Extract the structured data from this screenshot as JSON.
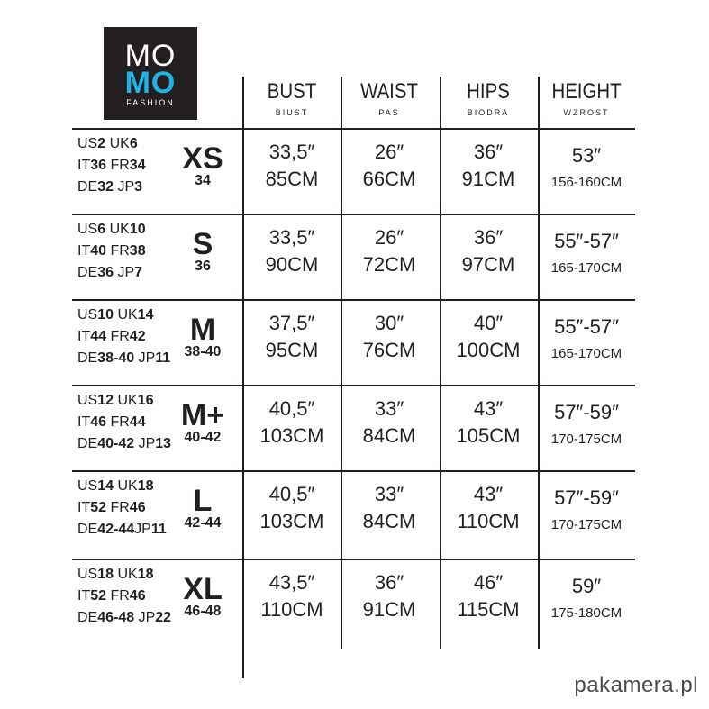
{
  "logo": {
    "line1": "MO",
    "line2": "MO",
    "line3": "FASHION",
    "accent": "#1fb3e6"
  },
  "headers": [
    {
      "en": "BUST",
      "pl": "BIUST"
    },
    {
      "en": "WAIST",
      "pl": "PAS"
    },
    {
      "en": "HIPS",
      "pl": "BIODRA"
    },
    {
      "en": "HEIGHT",
      "pl": "WZROST"
    }
  ],
  "rows": [
    {
      "size": "XS",
      "eu": "34",
      "codes": [
        [
          [
            "US",
            0
          ],
          [
            "2",
            1
          ],
          [
            " UK",
            0
          ],
          [
            "6",
            1
          ]
        ],
        [
          [
            "IT",
            0
          ],
          [
            "36",
            1
          ],
          [
            " FR",
            0
          ],
          [
            "34",
            1
          ]
        ],
        [
          [
            "DE",
            0
          ],
          [
            "32",
            1
          ],
          [
            " JP",
            0
          ],
          [
            "3",
            1
          ]
        ]
      ],
      "bust": [
        "33,5″",
        "85CM"
      ],
      "waist": [
        "26″",
        "66CM"
      ],
      "hips": [
        "36″",
        "91CM"
      ],
      "height": [
        "53″",
        "156-160CM"
      ]
    },
    {
      "size": "S",
      "eu": "36",
      "codes": [
        [
          [
            "US",
            0
          ],
          [
            "6",
            1
          ],
          [
            " UK",
            0
          ],
          [
            "10",
            1
          ]
        ],
        [
          [
            "IT",
            0
          ],
          [
            "40",
            1
          ],
          [
            " FR",
            0
          ],
          [
            "38",
            1
          ]
        ],
        [
          [
            "DE",
            0
          ],
          [
            "36",
            1
          ],
          [
            " JP",
            0
          ],
          [
            "7",
            1
          ]
        ]
      ],
      "bust": [
        "33,5″",
        "90CM"
      ],
      "waist": [
        "26″",
        "72CM"
      ],
      "hips": [
        "36″",
        "97CM"
      ],
      "height": [
        "55″-57″",
        "165-170CM"
      ]
    },
    {
      "size": "M",
      "eu": "38-40",
      "codes": [
        [
          [
            "US",
            0
          ],
          [
            "10",
            1
          ],
          [
            " UK",
            0
          ],
          [
            "14",
            1
          ]
        ],
        [
          [
            "IT",
            0
          ],
          [
            "44",
            1
          ],
          [
            " FR",
            0
          ],
          [
            "42",
            1
          ]
        ],
        [
          [
            "DE",
            0
          ],
          [
            "38-40",
            1
          ],
          [
            " JP",
            0
          ],
          [
            "11",
            1
          ]
        ]
      ],
      "bust": [
        "37,5″",
        "95CM"
      ],
      "waist": [
        "30″",
        "76CM"
      ],
      "hips": [
        "40″",
        "100CM"
      ],
      "height": [
        "55″-57″",
        "165-170CM"
      ]
    },
    {
      "size": "M+",
      "eu": "40-42",
      "codes": [
        [
          [
            "US",
            0
          ],
          [
            "12",
            1
          ],
          [
            " UK",
            0
          ],
          [
            "16",
            1
          ]
        ],
        [
          [
            "IT",
            0
          ],
          [
            "46",
            1
          ],
          [
            " FR",
            0
          ],
          [
            "44",
            1
          ]
        ],
        [
          [
            "DE",
            0
          ],
          [
            "40-42",
            1
          ],
          [
            " JP",
            0
          ],
          [
            "13",
            1
          ]
        ]
      ],
      "bust": [
        "40,5″",
        "103CM"
      ],
      "waist": [
        "33″",
        "84CM"
      ],
      "hips": [
        "43″",
        "105CM"
      ],
      "height": [
        "57″-59″",
        "170-175CM"
      ]
    },
    {
      "size": "L",
      "eu": "42-44",
      "codes": [
        [
          [
            "US",
            0
          ],
          [
            "14",
            1
          ],
          [
            " UK",
            0
          ],
          [
            "18",
            1
          ]
        ],
        [
          [
            "IT",
            0
          ],
          [
            "52",
            1
          ],
          [
            " FR",
            0
          ],
          [
            "46",
            1
          ]
        ],
        [
          [
            "DE",
            0
          ],
          [
            "42-44",
            1
          ],
          [
            "JP",
            0
          ],
          [
            "11",
            1
          ]
        ]
      ],
      "bust": [
        "40,5″",
        "103CM"
      ],
      "waist": [
        "33″",
        "84CM"
      ],
      "hips": [
        "43″",
        "110CM"
      ],
      "height": [
        "57″-59″",
        "170-175CM"
      ]
    },
    {
      "size": "XL",
      "eu": "46-48",
      "codes": [
        [
          [
            "US",
            0
          ],
          [
            "18",
            1
          ],
          [
            " UK",
            0
          ],
          [
            "18",
            1
          ]
        ],
        [
          [
            "IT",
            0
          ],
          [
            "52",
            1
          ],
          [
            " FR",
            0
          ],
          [
            "46",
            1
          ]
        ],
        [
          [
            "DE",
            0
          ],
          [
            "46-48",
            1
          ],
          [
            " JP",
            0
          ],
          [
            "22",
            1
          ]
        ]
      ],
      "bust": [
        "43,5″",
        "110CM"
      ],
      "waist": [
        "36″",
        "91CM"
      ],
      "hips": [
        "46″",
        "115CM"
      ],
      "height": [
        "59″",
        "175-180CM"
      ]
    }
  ],
  "watermark": "pakamera.pl"
}
